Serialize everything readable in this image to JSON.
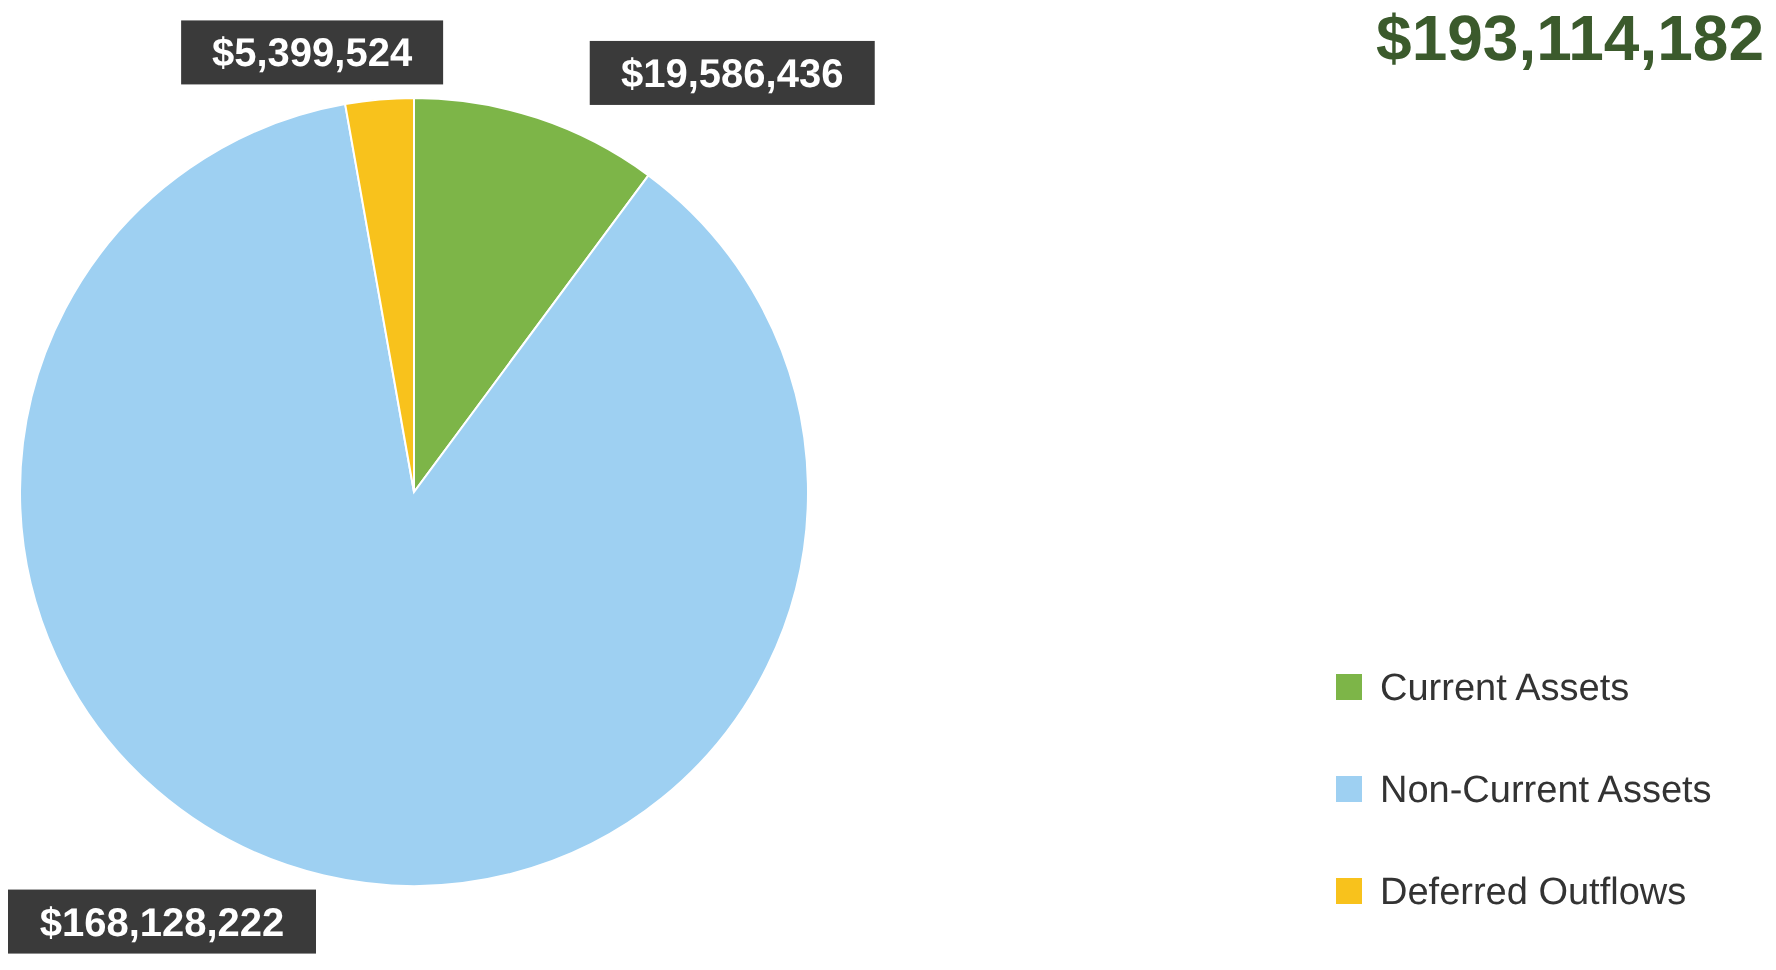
{
  "chart_data": {
    "type": "pie",
    "title": "$193,114,182",
    "categories": [
      "Current Assets",
      "Non-Current Assets",
      "Deferred Outflows"
    ],
    "values": [
      19586436,
      168128222,
      5399524
    ],
    "colors": [
      "#7db548",
      "#9ed0f2",
      "#f8c21c"
    ],
    "value_labels": [
      "$19,586,436",
      "$168,128,222",
      "$5,399,524"
    ],
    "legend": "bottom right"
  }
}
